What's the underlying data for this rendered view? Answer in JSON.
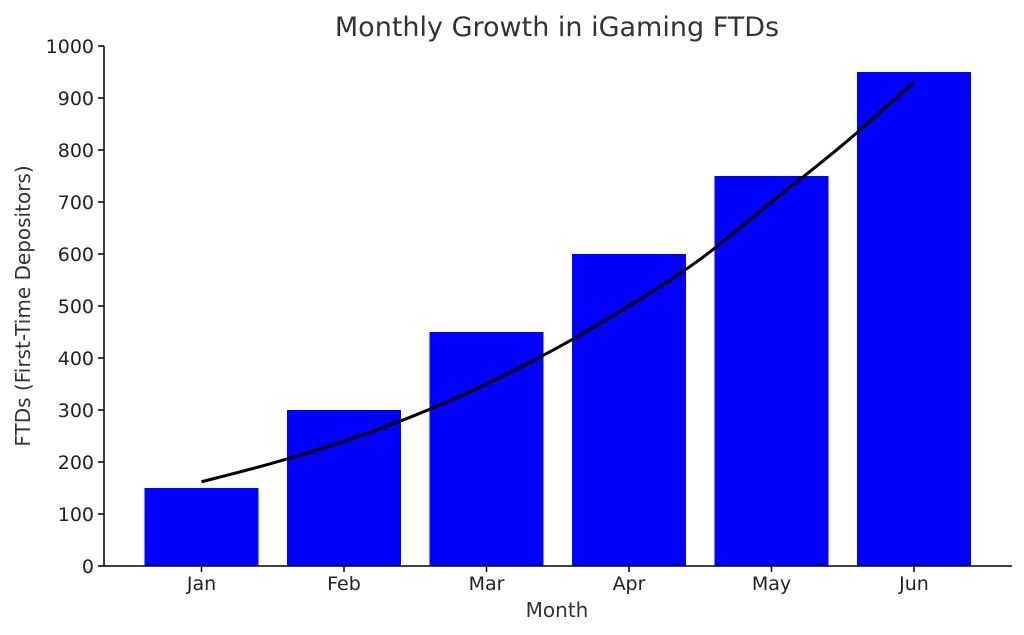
{
  "chart_data": {
    "type": "bar",
    "title": "Monthly Growth in iGaming FTDs",
    "xlabel": "Month",
    "ylabel": "FTDs (First-Time Depositors)",
    "categories": [
      "Jan",
      "Feb",
      "Mar",
      "Apr",
      "May",
      "Jun"
    ],
    "values": [
      150,
      300,
      450,
      600,
      750,
      950
    ],
    "ylim": [
      0,
      1000
    ],
    "yticks": [
      0,
      100,
      200,
      300,
      400,
      500,
      600,
      700,
      800,
      900,
      1000
    ],
    "grid": false,
    "bar_color": "#0000ff",
    "trend_line": {
      "color": "#000000",
      "x": [
        0,
        0.5,
        1,
        1.5,
        2,
        2.5,
        3,
        3.5,
        4,
        4.5,
        5
      ],
      "y": [
        162,
        198,
        240,
        290,
        350,
        420,
        500,
        590,
        700,
        810,
        930
      ]
    }
  }
}
